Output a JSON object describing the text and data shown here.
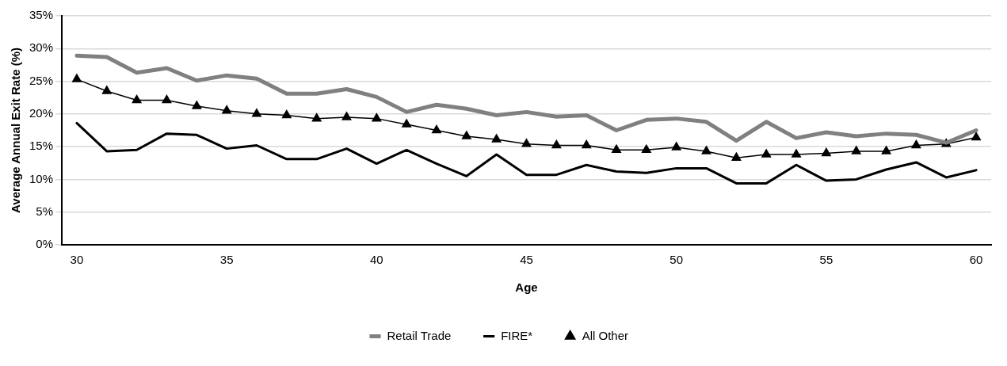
{
  "chart_data": {
    "type": "line",
    "xlabel": "Age",
    "ylabel": "Average Annual Exit Rate (%)",
    "x": [
      30,
      31,
      32,
      33,
      34,
      35,
      36,
      37,
      38,
      39,
      40,
      41,
      42,
      43,
      44,
      45,
      46,
      47,
      48,
      49,
      50,
      51,
      52,
      53,
      54,
      55,
      56,
      57,
      58,
      59,
      60
    ],
    "xlim": [
      29.5,
      60.5
    ],
    "xticks": [
      30,
      35,
      40,
      45,
      50,
      55,
      60
    ],
    "ylim": [
      0,
      35
    ],
    "yticks": [
      {
        "value": 0,
        "label": "0%"
      },
      {
        "value": 5,
        "label": "5%"
      },
      {
        "value": 10,
        "label": "10%"
      },
      {
        "value": 15,
        "label": "15%"
      },
      {
        "value": 20,
        "label": "20%"
      },
      {
        "value": 25,
        "label": "25%"
      },
      {
        "value": 30,
        "label": "30%"
      },
      {
        "value": 35,
        "label": "35%"
      }
    ],
    "grid": "y",
    "legend": "bottom",
    "series": [
      {
        "name": "Retail Trade",
        "color": "#808080",
        "marker": "none",
        "values": [
          28.9,
          28.7,
          26.3,
          27.0,
          25.1,
          25.9,
          25.4,
          23.1,
          23.1,
          23.8,
          22.6,
          20.3,
          21.4,
          20.8,
          19.8,
          20.3,
          19.6,
          19.8,
          17.5,
          19.1,
          19.3,
          18.8,
          15.9,
          18.8,
          16.3,
          17.2,
          16.6,
          17.0,
          16.8,
          15.6,
          17.5
        ]
      },
      {
        "name": "FIRE*",
        "color": "#000000",
        "marker": "none",
        "values": [
          18.6,
          14.3,
          14.5,
          17.0,
          16.8,
          14.7,
          15.2,
          13.1,
          13.1,
          14.7,
          12.4,
          14.5,
          12.4,
          10.5,
          13.8,
          10.7,
          10.7,
          12.2,
          11.2,
          11.0,
          11.7,
          11.7,
          9.4,
          9.4,
          12.2,
          9.8,
          10.0,
          11.5,
          12.6,
          10.3,
          11.4
        ]
      },
      {
        "name": "All Other",
        "color": "#000000",
        "marker": "triangle",
        "values": [
          25.3,
          23.5,
          22.1,
          22.1,
          21.2,
          20.5,
          20.0,
          19.8,
          19.3,
          19.5,
          19.3,
          18.4,
          17.5,
          16.6,
          16.1,
          15.4,
          15.2,
          15.2,
          14.5,
          14.5,
          14.9,
          14.3,
          13.3,
          13.8,
          13.8,
          14.0,
          14.3,
          14.3,
          15.2,
          15.4,
          16.4
        ]
      }
    ]
  }
}
